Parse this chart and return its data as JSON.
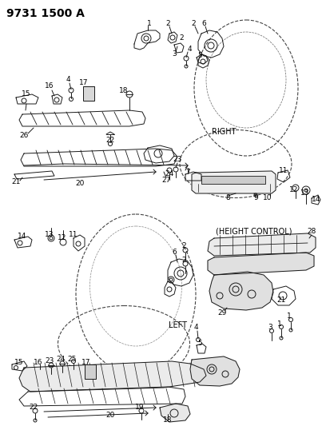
{
  "title": "9731 1500 A",
  "right_label": "RIGHT",
  "left_label": "LEFT",
  "height_control_label": "(HEIGHT CONTROL)",
  "bg_color": "#ffffff",
  "line_color": "#1a1a1a",
  "title_fontsize": 10,
  "label_fontsize": 7,
  "part_fontsize": 6.5,
  "fig_width": 4.03,
  "fig_height": 5.33,
  "dpi": 100
}
